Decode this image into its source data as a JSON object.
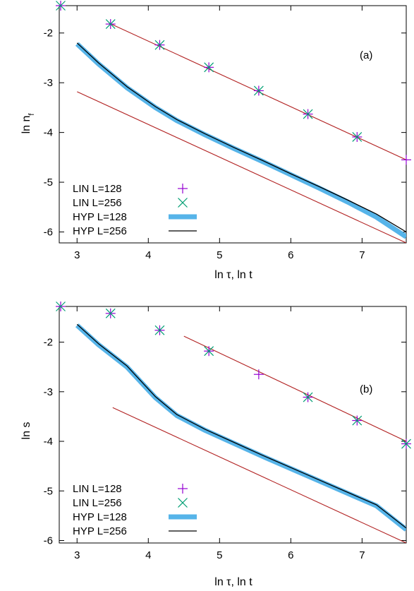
{
  "chart_data": [
    {
      "type": "line",
      "panel_label": "(a)",
      "xlabel": "ln τ, ln t",
      "ylabel": "ln n",
      "ylabel_sub": "f",
      "xlim": [
        2.75,
        7.62
      ],
      "ylim": [
        -6.22,
        -1.45
      ],
      "xticks": [
        3,
        4,
        5,
        6,
        7
      ],
      "yticks": [
        -2,
        -3,
        -4,
        -5,
        -6
      ],
      "legend_position": "bottom-left",
      "series": [
        {
          "name": "LIN L=128",
          "kind": "markers",
          "marker": "plus",
          "color": "#9400d3",
          "x": [
            2.77,
            3.47,
            4.16,
            4.85,
            5.55,
            6.24,
            6.93,
            7.62
          ],
          "y": [
            -1.45,
            -1.82,
            -2.24,
            -2.69,
            -3.16,
            -3.63,
            -4.09,
            -4.55
          ]
        },
        {
          "name": "LIN L=256",
          "kind": "markers",
          "marker": "cross",
          "color": "#009e73",
          "x": [
            2.77,
            3.47,
            4.16,
            4.85,
            5.55,
            6.24,
            6.93
          ],
          "y": [
            -1.45,
            -1.82,
            -2.24,
            -2.69,
            -3.16,
            -3.63,
            -4.09
          ]
        },
        {
          "name": "HYP L=128",
          "kind": "line",
          "color": "#56b4e9",
          "width": 7,
          "x": [
            3.0,
            3.3,
            3.7,
            4.1,
            4.4,
            4.8,
            5.2,
            5.6,
            6.0,
            6.4,
            6.8,
            7.2,
            7.62
          ],
          "y": [
            -2.22,
            -2.62,
            -3.1,
            -3.5,
            -3.76,
            -4.05,
            -4.32,
            -4.58,
            -4.85,
            -5.12,
            -5.4,
            -5.7,
            -6.1
          ]
        },
        {
          "name": "HYP L=256",
          "kind": "line",
          "color": "#000000",
          "width": 1.3,
          "x": [
            3.0,
            3.3,
            3.7,
            4.1,
            4.4,
            4.8,
            5.2,
            5.6,
            6.0,
            6.4,
            6.8,
            7.2,
            7.62
          ],
          "y": [
            -2.2,
            -2.6,
            -3.08,
            -3.48,
            -3.74,
            -4.03,
            -4.3,
            -4.56,
            -4.83,
            -5.09,
            -5.36,
            -5.64,
            -6.0
          ]
        },
        {
          "kind": "fit",
          "color": "#b22222",
          "width": 1.1,
          "x": [
            3.45,
            7.62
          ],
          "y": [
            -1.8,
            -4.55
          ]
        },
        {
          "kind": "fit",
          "color": "#b22222",
          "width": 1.1,
          "x": [
            3.0,
            7.62
          ],
          "y": [
            -3.18,
            -6.22
          ]
        }
      ]
    },
    {
      "type": "line",
      "panel_label": "(b)",
      "xlabel": "ln τ, ln t",
      "ylabel": "ln s",
      "ylabel_sub": "",
      "xlim": [
        2.75,
        7.62
      ],
      "ylim": [
        -6.05,
        -1.28
      ],
      "xticks": [
        3,
        4,
        5,
        6,
        7
      ],
      "yticks": [
        -2,
        -3,
        -4,
        -5,
        -6
      ],
      "legend_position": "bottom-left",
      "series": [
        {
          "name": "LIN L=128",
          "kind": "markers",
          "marker": "plus",
          "color": "#9400d3",
          "x": [
            2.77,
            3.47,
            4.16,
            4.85,
            5.55,
            6.24,
            6.93,
            7.62
          ],
          "y": [
            -1.28,
            -1.42,
            -1.76,
            -2.18,
            -2.65,
            -3.11,
            -3.58,
            -4.05
          ]
        },
        {
          "name": "LIN L=256",
          "kind": "markers",
          "marker": "cross",
          "color": "#009e73",
          "x": [
            2.77,
            3.47,
            4.16,
            4.85,
            6.24,
            6.93,
            7.62
          ],
          "y": [
            -1.28,
            -1.42,
            -1.76,
            -2.18,
            -3.11,
            -3.58,
            -4.05
          ]
        },
        {
          "name": "HYP L=128",
          "kind": "line",
          "color": "#56b4e9",
          "width": 7,
          "x": [
            3.0,
            3.3,
            3.7,
            4.1,
            4.4,
            4.8,
            5.2,
            5.6,
            6.0,
            6.4,
            6.8,
            7.2,
            7.62
          ],
          "y": [
            -1.66,
            -2.05,
            -2.5,
            -3.12,
            -3.48,
            -3.78,
            -4.04,
            -4.3,
            -4.55,
            -4.8,
            -5.05,
            -5.3,
            -5.78
          ]
        },
        {
          "name": "HYP L=256",
          "kind": "line",
          "color": "#000000",
          "width": 1.3,
          "x": [
            3.0,
            3.3,
            3.7,
            4.1,
            4.4,
            4.8,
            5.2,
            5.6,
            6.0,
            6.4,
            6.8,
            7.2,
            7.62
          ],
          "y": [
            -1.64,
            -2.03,
            -2.48,
            -3.1,
            -3.46,
            -3.76,
            -4.02,
            -4.28,
            -4.53,
            -4.78,
            -5.03,
            -5.28,
            -5.75
          ]
        },
        {
          "kind": "fit",
          "color": "#b22222",
          "width": 1.1,
          "x": [
            4.5,
            7.62
          ],
          "y": [
            -1.88,
            -4.0
          ]
        },
        {
          "kind": "fit",
          "color": "#b22222",
          "width": 1.1,
          "x": [
            3.5,
            7.62
          ],
          "y": [
            -3.32,
            -6.05
          ]
        }
      ]
    }
  ]
}
